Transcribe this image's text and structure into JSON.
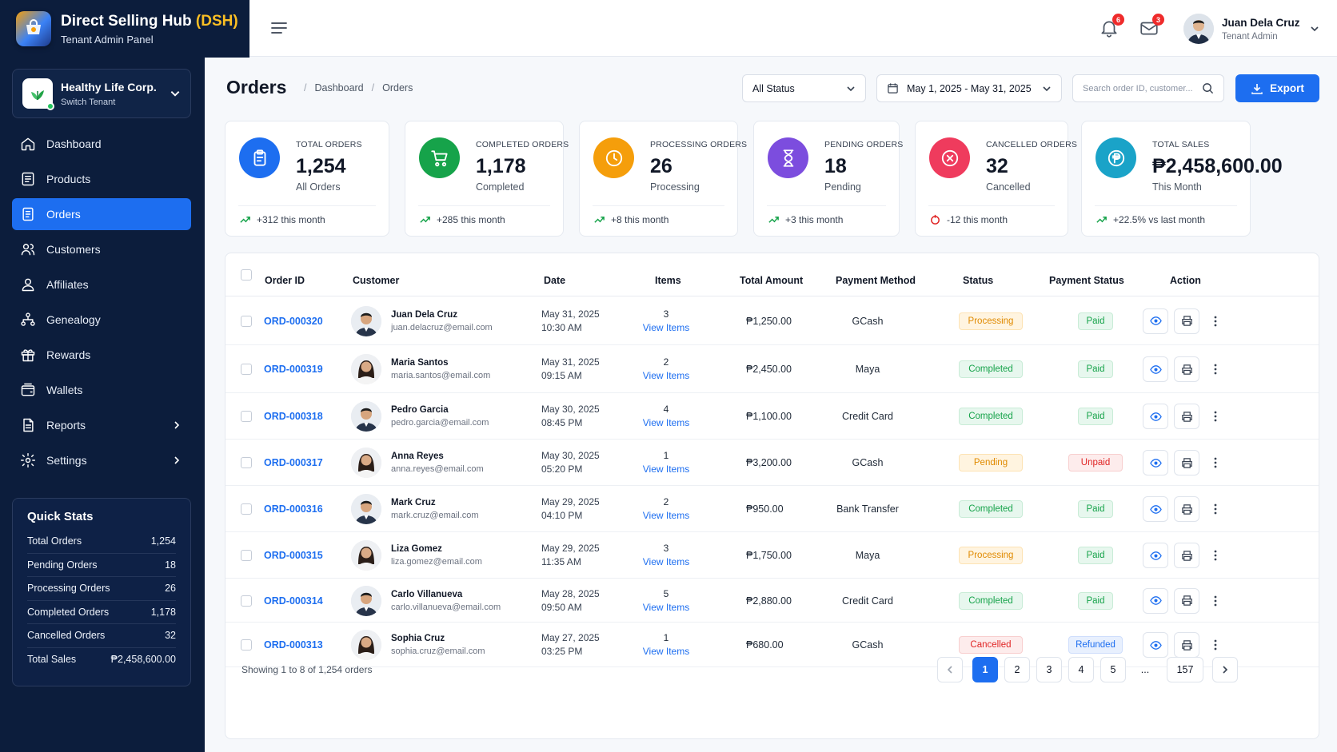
{
  "app": {
    "title_prefix": "Direct Selling Hub",
    "title_highlight": "(DSH)",
    "subtitle": "Tenant Admin Panel"
  },
  "tenant": {
    "name": "Healthy Life Corp.",
    "action": "Switch Tenant"
  },
  "nav": [
    {
      "label": "Dashboard",
      "icon": "home-icon",
      "active": false,
      "submenu": false
    },
    {
      "label": "Products",
      "icon": "products-icon",
      "active": false,
      "submenu": false
    },
    {
      "label": "Orders",
      "icon": "orders-icon",
      "active": true,
      "submenu": false
    },
    {
      "label": "Customers",
      "icon": "customers-icon",
      "active": false,
      "submenu": false
    },
    {
      "label": "Affiliates",
      "icon": "affiliates-icon",
      "active": false,
      "submenu": false
    },
    {
      "label": "Genealogy",
      "icon": "genealogy-icon",
      "active": false,
      "submenu": false
    },
    {
      "label": "Rewards",
      "icon": "gift-icon",
      "active": false,
      "submenu": false
    },
    {
      "label": "Wallets",
      "icon": "wallet-icon",
      "active": false,
      "submenu": false
    },
    {
      "label": "Reports",
      "icon": "reports-icon",
      "active": false,
      "submenu": true
    },
    {
      "label": "Settings",
      "icon": "gear-icon",
      "active": false,
      "submenu": true
    }
  ],
  "quick_stats": {
    "title": "Quick Stats",
    "rows": [
      {
        "label": "Total Orders",
        "value": "1,254"
      },
      {
        "label": "Pending Orders",
        "value": "18"
      },
      {
        "label": "Processing Orders",
        "value": "26"
      },
      {
        "label": "Completed Orders",
        "value": "1,178"
      },
      {
        "label": "Cancelled Orders",
        "value": "32"
      },
      {
        "label": "Total Sales",
        "value": "₱2,458,600.00"
      }
    ]
  },
  "header": {
    "notifications_count": "6",
    "messages_count": "3",
    "user_name": "Juan Dela Cruz",
    "user_role": "Tenant Admin"
  },
  "page": {
    "title": "Orders",
    "breadcrumb": [
      "Dashboard",
      "Orders"
    ],
    "status_filter": "All Status",
    "date_range": "May 1, 2025 - May 31, 2025",
    "search_placeholder": "Search order ID, customer...",
    "export_label": "Export"
  },
  "stats": [
    {
      "label": "TOTAL ORDERS",
      "value": "1,254",
      "sub": "All Orders",
      "trend": "+312 this month",
      "color": "#1d6ef0",
      "trend_dir": "up",
      "icon": "clipboard-icon"
    },
    {
      "label": "COMPLETED ORDERS",
      "value": "1,178",
      "sub": "Completed",
      "trend": "+285 this month",
      "color": "#16a34a",
      "trend_dir": "up",
      "icon": "cart-icon"
    },
    {
      "label": "PROCESSING ORDERS",
      "value": "26",
      "sub": "Processing",
      "trend": "+8 this month",
      "color": "#f59e0b",
      "trend_dir": "up",
      "icon": "clock-icon"
    },
    {
      "label": "PENDING ORDERS",
      "value": "18",
      "sub": "Pending",
      "trend": "+3 this month",
      "color": "#7c4dde",
      "trend_dir": "up",
      "icon": "hourglass-icon"
    },
    {
      "label": "CANCELLED ORDERS",
      "value": "32",
      "sub": "Cancelled",
      "trend": "-12 this month",
      "color": "#ef3b5d",
      "trend_dir": "down",
      "icon": "x-circle-icon"
    },
    {
      "label": "TOTAL SALES",
      "value": "₱2,458,600.00",
      "sub": "This Month",
      "trend": "+22.5% vs last month",
      "color": "#1aa3c8",
      "trend_dir": "up",
      "icon": "peso-icon"
    }
  ],
  "table": {
    "columns": [
      "Order ID",
      "Customer",
      "Date",
      "Items",
      "Total Amount",
      "Payment Method",
      "Status",
      "Payment Status",
      "Action"
    ],
    "view_items_label": "View Items",
    "rows": [
      {
        "id": "ORD-000320",
        "name": "Juan Dela Cruz",
        "email": "juan.delacruz@email.com",
        "gender": "m",
        "date": "May 31, 2025",
        "time": "10:30 AM",
        "items": "3",
        "amount": "₱1,250.00",
        "method": "GCash",
        "status": "Processing",
        "status_type": "processing",
        "payment": "Paid",
        "payment_type": "paid"
      },
      {
        "id": "ORD-000319",
        "name": "Maria Santos",
        "email": "maria.santos@email.com",
        "gender": "f",
        "date": "May 31, 2025",
        "time": "09:15 AM",
        "items": "2",
        "amount": "₱2,450.00",
        "method": "Maya",
        "status": "Completed",
        "status_type": "completed",
        "payment": "Paid",
        "payment_type": "paid"
      },
      {
        "id": "ORD-000318",
        "name": "Pedro Garcia",
        "email": "pedro.garcia@email.com",
        "gender": "m",
        "date": "May 30, 2025",
        "time": "08:45 PM",
        "items": "4",
        "amount": "₱1,100.00",
        "method": "Credit Card",
        "status": "Completed",
        "status_type": "completed",
        "payment": "Paid",
        "payment_type": "paid"
      },
      {
        "id": "ORD-000317",
        "name": "Anna Reyes",
        "email": "anna.reyes@email.com",
        "gender": "f",
        "date": "May 30, 2025",
        "time": "05:20 PM",
        "items": "1",
        "amount": "₱3,200.00",
        "method": "GCash",
        "status": "Pending",
        "status_type": "pending",
        "payment": "Unpaid",
        "payment_type": "unpaid"
      },
      {
        "id": "ORD-000316",
        "name": "Mark Cruz",
        "email": "mark.cruz@email.com",
        "gender": "m",
        "date": "May 29, 2025",
        "time": "04:10 PM",
        "items": "2",
        "amount": "₱950.00",
        "method": "Bank Transfer",
        "status": "Completed",
        "status_type": "completed",
        "payment": "Paid",
        "payment_type": "paid"
      },
      {
        "id": "ORD-000315",
        "name": "Liza Gomez",
        "email": "liza.gomez@email.com",
        "gender": "f",
        "date": "May 29, 2025",
        "time": "11:35 AM",
        "items": "3",
        "amount": "₱1,750.00",
        "method": "Maya",
        "status": "Processing",
        "status_type": "processing",
        "payment": "Paid",
        "payment_type": "paid"
      },
      {
        "id": "ORD-000314",
        "name": "Carlo Villanueva",
        "email": "carlo.villanueva@email.com",
        "gender": "m",
        "date": "May 28, 2025",
        "time": "09:50 AM",
        "items": "5",
        "amount": "₱2,880.00",
        "method": "Credit Card",
        "status": "Completed",
        "status_type": "completed",
        "payment": "Paid",
        "payment_type": "paid"
      },
      {
        "id": "ORD-000313",
        "name": "Sophia Cruz",
        "email": "sophia.cruz@email.com",
        "gender": "f",
        "date": "May 27, 2025",
        "time": "03:25 PM",
        "items": "1",
        "amount": "₱680.00",
        "method": "GCash",
        "status": "Cancelled",
        "status_type": "cancelled",
        "payment": "Refunded",
        "payment_type": "refunded"
      }
    ]
  },
  "pagination": {
    "summary": "Showing 1 to 8 of 1,254 orders",
    "pages": [
      "1",
      "2",
      "3",
      "4",
      "5"
    ],
    "ellipsis": "...",
    "last": "157",
    "current": "1"
  }
}
